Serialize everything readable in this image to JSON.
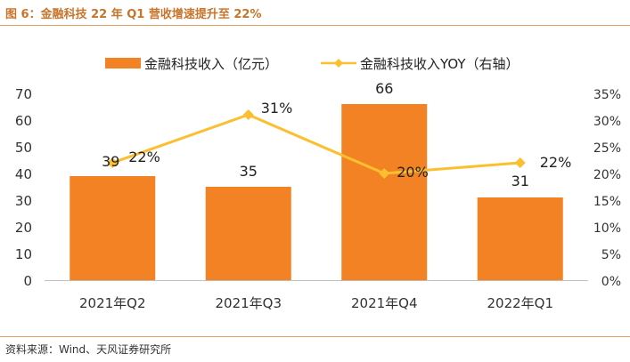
{
  "figure": {
    "title": "图 6：金融科技 22 年 Q1 营收增速提升至 22%",
    "source": "资料来源：Wind、天风证券研究所"
  },
  "colors": {
    "bar": "#f28224",
    "line": "#fbbf30",
    "title": "#c8742a",
    "rule": "#e0a060"
  },
  "chart_data": {
    "type": "bar",
    "categories": [
      "2021年Q2",
      "2021年Q3",
      "2021年Q4",
      "2022年Q1"
    ],
    "series": [
      {
        "name": "金融科技收入（亿元）",
        "type": "bar",
        "axis": "left",
        "values": [
          39,
          35,
          66,
          31
        ],
        "labels": [
          "39",
          "35",
          "66",
          "31"
        ]
      },
      {
        "name": "金融科技收入YOY（右轴）",
        "type": "line",
        "axis": "right",
        "values": [
          22,
          31,
          20,
          22
        ],
        "labels": [
          "22%",
          "31%",
          "20%",
          "22%"
        ]
      }
    ],
    "y_left": {
      "range": [
        0,
        70
      ],
      "ticks": [
        "0",
        "10",
        "20",
        "30",
        "40",
        "50",
        "60",
        "70"
      ]
    },
    "y_right": {
      "range": [
        0,
        35
      ],
      "ticks": [
        "0%",
        "5%",
        "10%",
        "15%",
        "20%",
        "25%",
        "30%",
        "35%"
      ]
    },
    "legend_position": "top",
    "grid": false
  }
}
